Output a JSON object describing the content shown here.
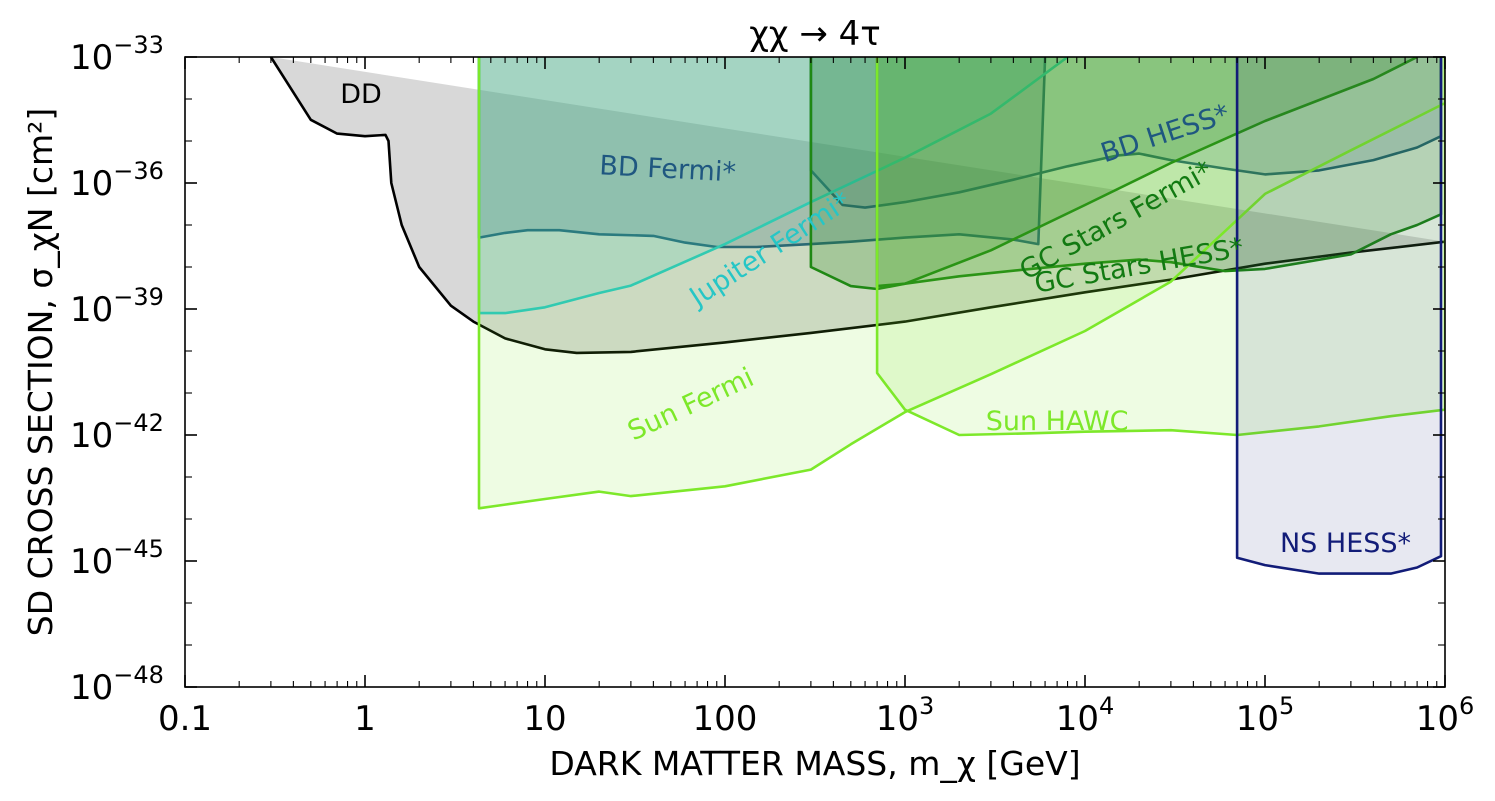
{
  "chart_data": {
    "type": "area",
    "title": "χχ → 4τ",
    "xlabel": "DARK MATTER MASS, m_χ [GeV]",
    "ylabel": "SD CROSS SECTION, σ_χN [cm²]",
    "xscale": "log",
    "yscale": "log",
    "xlim": [
      0.1,
      1000000
    ],
    "ylim": [
      1e-48,
      1e-33
    ],
    "x_ticks": [
      {
        "value": 0.1,
        "label": "0.1"
      },
      {
        "value": 1,
        "label": "1"
      },
      {
        "value": 10,
        "label": "10"
      },
      {
        "value": 100,
        "label": "100"
      },
      {
        "value": 1000,
        "label": "10",
        "exp": "3"
      },
      {
        "value": 10000,
        "label": "10",
        "exp": "4"
      },
      {
        "value": 100000,
        "label": "10",
        "exp": "5"
      },
      {
        "value": 1000000,
        "label": "10",
        "exp": "6"
      }
    ],
    "y_ticks": [
      {
        "value": 1e-48,
        "label": "10",
        "exp": "−48"
      },
      {
        "value": 1e-45,
        "label": "10",
        "exp": "−45"
      },
      {
        "value": 1e-42,
        "label": "10",
        "exp": "−42"
      },
      {
        "value": 1e-39,
        "label": "10",
        "exp": "−39"
      },
      {
        "value": 1e-36,
        "label": "10",
        "exp": "−36"
      },
      {
        "value": 1e-33,
        "label": "10",
        "exp": "−33"
      }
    ],
    "series": [
      {
        "name": "DD",
        "color": "#000000",
        "fill": "#c8c8c8",
        "fill_opacity": 0.7,
        "points": [
          [
            0.3,
            1e-33
          ],
          [
            0.5,
            3.2e-35
          ],
          [
            0.7,
            1.5e-35
          ],
          [
            1.0,
            1.3e-35
          ],
          [
            1.3,
            1.4e-35
          ],
          [
            1.35,
            1e-35
          ],
          [
            1.4,
            1e-36
          ],
          [
            1.6,
            1e-37
          ],
          [
            2.0,
            1e-38
          ],
          [
            3.0,
            1.2e-39
          ],
          [
            4.0,
            5e-40
          ],
          [
            6.0,
            2e-40
          ],
          [
            10,
            1.1e-40
          ],
          [
            15,
            9e-41
          ],
          [
            30,
            9.5e-41
          ],
          [
            100,
            1.6e-40
          ],
          [
            300,
            2.7e-40
          ],
          [
            1000,
            5e-40
          ],
          [
            3000,
            1.1e-39
          ],
          [
            10000,
            2.5e-39
          ],
          [
            30000,
            5e-39
          ],
          [
            100000,
            1.2e-38
          ],
          [
            300000,
            2.2e-38
          ],
          [
            1000000,
            4e-38
          ]
        ]
      },
      {
        "name": "BD Fermi*",
        "color": "#1f5780",
        "fill": "#1f5780",
        "fill_opacity": 0.25,
        "points": [
          [
            4.3,
            1e-33
          ],
          [
            4.3,
            5e-38
          ],
          [
            6,
            6.5e-38
          ],
          [
            8,
            7.5e-38
          ],
          [
            12,
            7.5e-38
          ],
          [
            20,
            6e-38
          ],
          [
            40,
            5.5e-38
          ],
          [
            60,
            3.8e-38
          ],
          [
            90,
            3e-38
          ],
          [
            150,
            3e-38
          ],
          [
            300,
            3.5e-38
          ],
          [
            500,
            4e-38
          ],
          [
            1000,
            5e-38
          ],
          [
            2000,
            6e-38
          ],
          [
            4000,
            4.5e-38
          ],
          [
            5500,
            3.5e-38
          ],
          [
            6000,
            1e-33
          ]
        ]
      },
      {
        "name": "BD HESS*",
        "color": "#1f5780",
        "fill": "#1f5780",
        "fill_opacity": 0.18,
        "points": [
          [
            300,
            1e-33
          ],
          [
            300,
            2e-36
          ],
          [
            450,
            3e-37
          ],
          [
            600,
            2.6e-37
          ],
          [
            1000,
            3.5e-37
          ],
          [
            2000,
            6e-37
          ],
          [
            4000,
            1.2e-36
          ],
          [
            8000,
            2.5e-36
          ],
          [
            15000,
            4.5e-36
          ],
          [
            20000,
            5e-36
          ],
          [
            30000,
            3.5e-36
          ],
          [
            60000,
            2.2e-36
          ],
          [
            100000,
            1.6e-36
          ],
          [
            200000,
            2e-36
          ],
          [
            400000,
            3.5e-36
          ],
          [
            700000,
            7e-36
          ],
          [
            950000,
            1.3e-35
          ],
          [
            950000,
            1e-33
          ]
        ]
      },
      {
        "name": "Jupiter Fermi*",
        "color": "#26c6c6",
        "fill": "#26c6c6",
        "fill_opacity": 0.18,
        "points": [
          [
            4.3,
            1e-33
          ],
          [
            4.3,
            8e-40
          ],
          [
            6,
            8e-40
          ],
          [
            10,
            1.1e-39
          ],
          [
            20,
            2.4e-39
          ],
          [
            30,
            3.6e-39
          ],
          [
            100,
            3.5e-38
          ],
          [
            300,
            3.5e-37
          ],
          [
            1000,
            4e-36
          ],
          [
            3000,
            4.5e-35
          ],
          [
            8000,
            1e-33
          ]
        ]
      },
      {
        "name": "GC Stars Fermi*",
        "color": "#127a12",
        "fill": "#127a12",
        "fill_opacity": 0.22,
        "points": [
          [
            300,
            1e-33
          ],
          [
            300,
            1e-38
          ],
          [
            500,
            3.5e-39
          ],
          [
            700,
            3e-39
          ],
          [
            1000,
            4e-39
          ],
          [
            3000,
            2.5e-38
          ],
          [
            10000,
            3e-37
          ],
          [
            30000,
            3e-36
          ],
          [
            100000,
            3e-35
          ],
          [
            400000,
            3e-34
          ],
          [
            700000,
            1e-33
          ]
        ]
      },
      {
        "name": "GC Stars HESS*",
        "color": "#127a12",
        "fill": "#127a12",
        "fill_opacity": 0.18,
        "points": [
          [
            700,
            1e-33
          ],
          [
            700,
            3.5e-39
          ],
          [
            1000,
            4e-39
          ],
          [
            2000,
            6e-39
          ],
          [
            5000,
            9e-39
          ],
          [
            10000,
            1.2e-38
          ],
          [
            20000,
            1.5e-38
          ],
          [
            30000,
            1.3e-38
          ],
          [
            60000,
            8e-39
          ],
          [
            100000,
            9e-39
          ],
          [
            300000,
            2e-38
          ],
          [
            500000,
            6e-38
          ],
          [
            700000,
            1e-37
          ],
          [
            950000,
            1.8e-37
          ],
          [
            950000,
            1e-33
          ]
        ]
      },
      {
        "name": "Sun Fermi",
        "color": "#7de82a",
        "fill": "#7de82a",
        "fill_opacity": 0.13,
        "points": [
          [
            4.3,
            1e-33
          ],
          [
            4.3,
            1.8e-44
          ],
          [
            6,
            2.2e-44
          ],
          [
            10,
            3e-44
          ],
          [
            20,
            4.5e-44
          ],
          [
            30,
            3.5e-44
          ],
          [
            100,
            6e-44
          ],
          [
            300,
            1.5e-43
          ],
          [
            500,
            6e-43
          ],
          [
            1000,
            3.5e-42
          ],
          [
            3000,
            2.8e-41
          ],
          [
            10000,
            3e-40
          ],
          [
            30000,
            4.5e-39
          ],
          [
            100000,
            5.5e-37
          ],
          [
            300000,
            6e-36
          ],
          [
            1000000,
            8e-35
          ],
          [
            1000000,
            1e-33
          ]
        ]
      },
      {
        "name": "Sun HAWC",
        "color": "#7de82a",
        "fill": "#7de82a",
        "fill_opacity": 0.13,
        "points": [
          [
            700,
            1e-33
          ],
          [
            700,
            3e-41
          ],
          [
            1000,
            4e-42
          ],
          [
            2000,
            1e-42
          ],
          [
            5000,
            1.1e-42
          ],
          [
            10000,
            1.2e-42
          ],
          [
            30000,
            1.3e-42
          ],
          [
            70000,
            1e-42
          ],
          [
            200000,
            1.6e-42
          ],
          [
            500000,
            2.8e-42
          ],
          [
            1000000,
            4e-42
          ],
          [
            1000000,
            1e-33
          ]
        ]
      },
      {
        "name": "NS HESS*",
        "color": "#121c78",
        "fill": "#121c78",
        "fill_opacity": 0.1,
        "points": [
          [
            70000,
            1e-33
          ],
          [
            70000,
            1.2e-45
          ],
          [
            100000,
            8e-46
          ],
          [
            200000,
            5e-46
          ],
          [
            500000,
            5e-46
          ],
          [
            700000,
            7e-46
          ],
          [
            950000,
            1.3e-45
          ],
          [
            950000,
            1e-33
          ]
        ]
      }
    ],
    "annotations": [
      {
        "text": "DD",
        "x": 0.95,
        "y": 1.2e-34,
        "angle": 0,
        "color": "#000000"
      },
      {
        "text": "BD Fermi*",
        "x": 48,
        "y": 2e-36,
        "angle": 3,
        "color": "#1f5780"
      },
      {
        "text": "BD HESS*",
        "x": 28000,
        "y": 1.4e-35,
        "angle": -18,
        "color": "#1f5780"
      },
      {
        "text": "Jupiter Fermi*",
        "x": 180,
        "y": 2.5e-38,
        "angle": -33,
        "color": "#26c6c6"
      },
      {
        "text": "GC Stars Fermi*",
        "x": 15000,
        "y": 1.2e-37,
        "angle": -29,
        "color": "#127a12"
      },
      {
        "text": "GC Stars HESS*",
        "x": 20000,
        "y": 1e-38,
        "angle": -10,
        "color": "#127a12"
      },
      {
        "text": "Sun Fermi",
        "x": 65,
        "y": 5e-42,
        "angle": -25,
        "color": "#7de82a"
      },
      {
        "text": "Sun HAWC",
        "x": 7000,
        "y": 2e-42,
        "angle": 0,
        "color": "#7de82a"
      },
      {
        "text": "NS HESS*",
        "x": 280000,
        "y": 2.5e-45,
        "angle": 0,
        "color": "#121c78"
      }
    ],
    "grid": false
  }
}
